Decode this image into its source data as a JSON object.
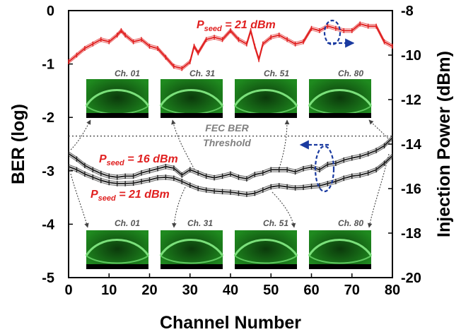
{
  "chart_data": {
    "type": "line",
    "xlabel": "Channel Number",
    "ylabel_left": "BER (log)",
    "ylabel_right": "Injection Power (dBm)",
    "xlim": [
      0,
      80
    ],
    "ylim_left": [
      -5,
      0
    ],
    "ylim_right": [
      -20,
      -8
    ],
    "x_ticks": [
      "0",
      "10",
      "20",
      "30",
      "40",
      "50",
      "60",
      "70",
      "80"
    ],
    "y_left_ticks": [
      "0",
      "-1",
      "-2",
      "-3",
      "-4",
      "-5"
    ],
    "y_right_ticks": [
      "-8",
      "-10",
      "-12",
      "-14",
      "-16",
      "-18",
      "-20"
    ],
    "grid": false,
    "threshold": {
      "value": -2.35,
      "label_line1": "FEC BER",
      "label_line2": "Threshold"
    },
    "annotations": [
      {
        "main": "P",
        "sub": "seed",
        "rest": " = 21 dBm"
      },
      {
        "main": "P",
        "sub": "seed",
        "rest": " = 16 dBm"
      },
      {
        "main": "P",
        "sub": "seed",
        "rest": " = 21 dBm"
      }
    ],
    "eye_labels_top": [
      "Ch. 01",
      "Ch. 31",
      "Ch. 51",
      "Ch. 80"
    ],
    "eye_labels_bottom": [
      "Ch. 01",
      "Ch. 31",
      "Ch. 51",
      "Ch. 80"
    ],
    "series": [
      {
        "axis": "right",
        "color": "#e02020",
        "x": [
          0,
          2,
          4,
          6,
          8,
          10,
          12,
          13,
          14,
          16,
          18,
          20,
          22,
          24,
          26,
          28,
          30,
          31,
          32,
          34,
          36,
          38,
          40,
          42,
          44,
          45,
          46,
          47,
          48,
          50,
          52,
          54,
          56,
          58,
          60,
          62,
          64,
          66,
          68,
          70,
          72,
          74,
          76,
          78,
          80
        ],
        "values": [
          -10.3,
          -10,
          -9.7,
          -9.5,
          -9.3,
          -9.4,
          -9.1,
          -8.9,
          -9.1,
          -9.4,
          -9.3,
          -9.6,
          -9.7,
          -10.1,
          -10.5,
          -10.6,
          -10.3,
          -9.6,
          -9.9,
          -9.3,
          -9.2,
          -9.3,
          -8.9,
          -9.3,
          -9.5,
          -8.9,
          -9.6,
          -10.2,
          -9.5,
          -9.2,
          -9.1,
          -9.3,
          -9.5,
          -9.4,
          -8.8,
          -8.9,
          -8.7,
          -8.8,
          -8.9,
          -8.9,
          -8.6,
          -8.7,
          -8.7,
          -9.4,
          -9.6
        ]
      },
      {
        "name": "P_seed = 16 dBm",
        "axis": "left",
        "color": "#222222",
        "x": [
          0,
          2,
          4,
          6,
          8,
          10,
          12,
          14,
          16,
          18,
          20,
          22,
          24,
          26,
          28,
          30,
          32,
          34,
          36,
          38,
          40,
          42,
          44,
          46,
          48,
          50,
          52,
          54,
          56,
          58,
          60,
          62,
          64,
          66,
          68,
          70,
          72,
          74,
          76,
          78,
          80
        ],
        "values": [
          -2.68,
          -2.78,
          -2.9,
          -2.98,
          -3.05,
          -3.1,
          -3.12,
          -3.1,
          -3.1,
          -3.04,
          -3.0,
          -2.96,
          -2.92,
          -2.95,
          -3.08,
          -2.98,
          -3.04,
          -3.1,
          -3.13,
          -3.1,
          -3.06,
          -3.12,
          -3.15,
          -3.07,
          -3.04,
          -2.98,
          -2.98,
          -2.98,
          -3.02,
          -2.96,
          -2.93,
          -2.98,
          -2.88,
          -2.86,
          -2.8,
          -2.76,
          -2.73,
          -2.68,
          -2.62,
          -2.53,
          -2.38
        ]
      },
      {
        "name": "P_seed = 21 dBm",
        "axis": "left",
        "color": "#222222",
        "x": [
          0,
          2,
          4,
          6,
          8,
          10,
          12,
          14,
          16,
          18,
          20,
          22,
          24,
          26,
          28,
          30,
          32,
          34,
          36,
          38,
          40,
          42,
          44,
          46,
          48,
          50,
          52,
          54,
          56,
          58,
          60,
          62,
          64,
          66,
          68,
          70,
          72,
          74,
          76,
          78,
          80
        ],
        "values": [
          -2.92,
          -2.98,
          -3.06,
          -3.12,
          -3.18,
          -3.22,
          -3.24,
          -3.24,
          -3.23,
          -3.2,
          -3.17,
          -3.13,
          -3.12,
          -3.14,
          -3.2,
          -3.27,
          -3.33,
          -3.36,
          -3.38,
          -3.39,
          -3.4,
          -3.42,
          -3.44,
          -3.42,
          -3.36,
          -3.3,
          -3.28,
          -3.3,
          -3.32,
          -3.31,
          -3.29,
          -3.28,
          -3.24,
          -3.2,
          -3.14,
          -3.1,
          -3.08,
          -3.04,
          -2.98,
          -2.86,
          -2.72
        ]
      }
    ]
  }
}
